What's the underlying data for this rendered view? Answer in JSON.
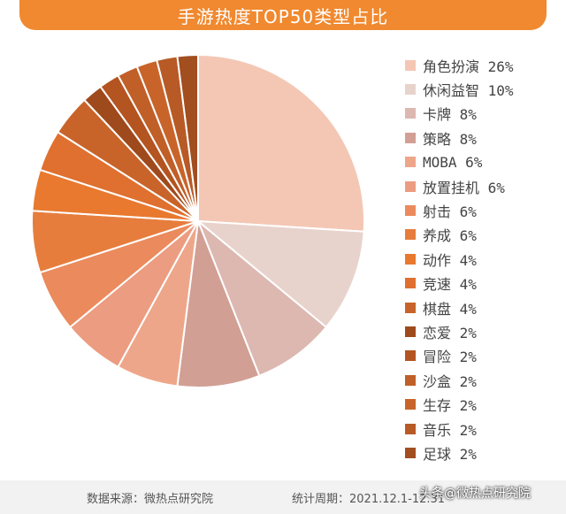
{
  "title": "手游热度TOP50类型占比",
  "footer": {
    "source": "数据来源：微热点研究院",
    "period": "统计周期：2021.12.1-12.31"
  },
  "watermark": "头条@微热点研究院",
  "chart_data": {
    "type": "pie",
    "title": "手游热度TOP50类型占比",
    "legend_position": "right",
    "slices": [
      {
        "label": "角色扮演",
        "value": 26,
        "color": "#f4c7b5"
      },
      {
        "label": "休闲益智",
        "value": 10,
        "color": "#e8d3cc"
      },
      {
        "label": "卡牌",
        "value": 8,
        "color": "#dcb8b0"
      },
      {
        "label": "策略",
        "value": 8,
        "color": "#d29f94"
      },
      {
        "label": "MOBA",
        "value": 6,
        "color": "#eea68a"
      },
      {
        "label": "放置挂机",
        "value": 6,
        "color": "#ec9c80"
      },
      {
        "label": "射击",
        "value": 6,
        "color": "#eb8a5c"
      },
      {
        "label": "养成",
        "value": 6,
        "color": "#e77d3d"
      },
      {
        "label": "动作",
        "value": 4,
        "color": "#e8792f"
      },
      {
        "label": "竞速",
        "value": 4,
        "color": "#df7030"
      },
      {
        "label": "棋盘",
        "value": 4,
        "color": "#c8642a"
      },
      {
        "label": "恋爱",
        "value": 2,
        "color": "#9f4a1c"
      },
      {
        "label": "冒险",
        "value": 2,
        "color": "#b45420"
      },
      {
        "label": "沙盒",
        "value": 2,
        "color": "#c05f28"
      },
      {
        "label": "生存",
        "value": 2,
        "color": "#c8642a"
      },
      {
        "label": "音乐",
        "value": 2,
        "color": "#b85a26"
      },
      {
        "label": "足球",
        "value": 2,
        "color": "#a24e1f"
      }
    ]
  }
}
